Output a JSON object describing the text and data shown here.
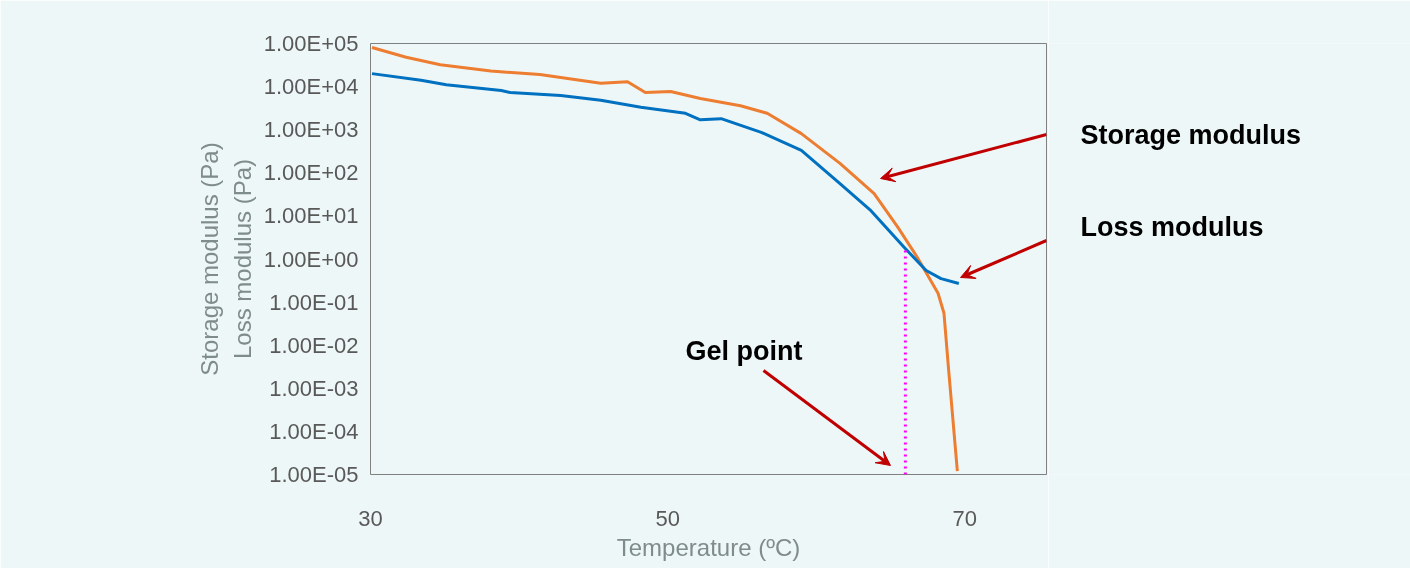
{
  "chart_data": {
    "type": "line",
    "xlabel": "Temperature (ºC)",
    "ylabel": "Storage modulus (Pa)\nLoss modulus (Pa)",
    "log": "y",
    "xlim": [
      30,
      75.5
    ],
    "xticks": [
      30,
      50,
      70
    ],
    "ylim": [
      1e-05,
      100000
    ],
    "yticks": [
      {
        "value": 100000,
        "label": "1.00E+05"
      },
      {
        "value": 10000,
        "label": "1.00E+04"
      },
      {
        "value": 1000,
        "label": "1.00E+03"
      },
      {
        "value": 100,
        "label": "1.00E+02"
      },
      {
        "value": 10,
        "label": "1.00E+01"
      },
      {
        "value": 1,
        "label": "1.00E+00"
      },
      {
        "value": 0.1,
        "label": "1.00E-01"
      },
      {
        "value": 0.01,
        "label": "1.00E-02"
      },
      {
        "value": 0.001,
        "label": "1.00E-03"
      },
      {
        "value": 0.0001,
        "label": "1.00E-04"
      },
      {
        "value": 1e-05,
        "label": "1.00E-05"
      }
    ],
    "grid": false,
    "series": [
      {
        "color": "#ed7d31",
        "x": [
          30.1,
          32.4,
          34.7,
          38.1,
          41.4,
          45.5,
          47.3,
          48.5,
          50.2,
          52.2,
          54.9,
          56.7,
          59.0,
          61.6,
          63.9,
          65.5,
          66.8,
          68.2,
          68.6,
          68.9,
          69.5
        ],
        "values": [
          81000,
          48000,
          32000,
          23000,
          19000,
          12000,
          13000,
          7300,
          7700,
          5300,
          3600,
          2400,
          810,
          165,
          33,
          5.4,
          1.1,
          0.16,
          0.055,
          0.003,
          1.2e-05
        ]
      },
      {
        "color": "#0070c0",
        "x": [
          30.1,
          33.4,
          35.1,
          38.8,
          39.4,
          42.8,
          45.5,
          48.2,
          51.2,
          52.2,
          53.6,
          56.3,
          59.0,
          61.6,
          63.7,
          65.9,
          67.4,
          68.4,
          69.6
        ],
        "values": [
          20000,
          14000,
          11000,
          8100,
          7300,
          6200,
          4800,
          3300,
          2400,
          1700,
          1800,
          870,
          330,
          56,
          13,
          1.9,
          0.54,
          0.35,
          0.27
        ]
      },
      {
        "color": "#ff00ff",
        "line_style": "dotted",
        "x": [
          66.0,
          66.0
        ],
        "values": [
          1e-05,
          1.9
        ]
      }
    ],
    "annotations": [
      "Storage modulus",
      "Loss modulus",
      "Gel point"
    ]
  }
}
